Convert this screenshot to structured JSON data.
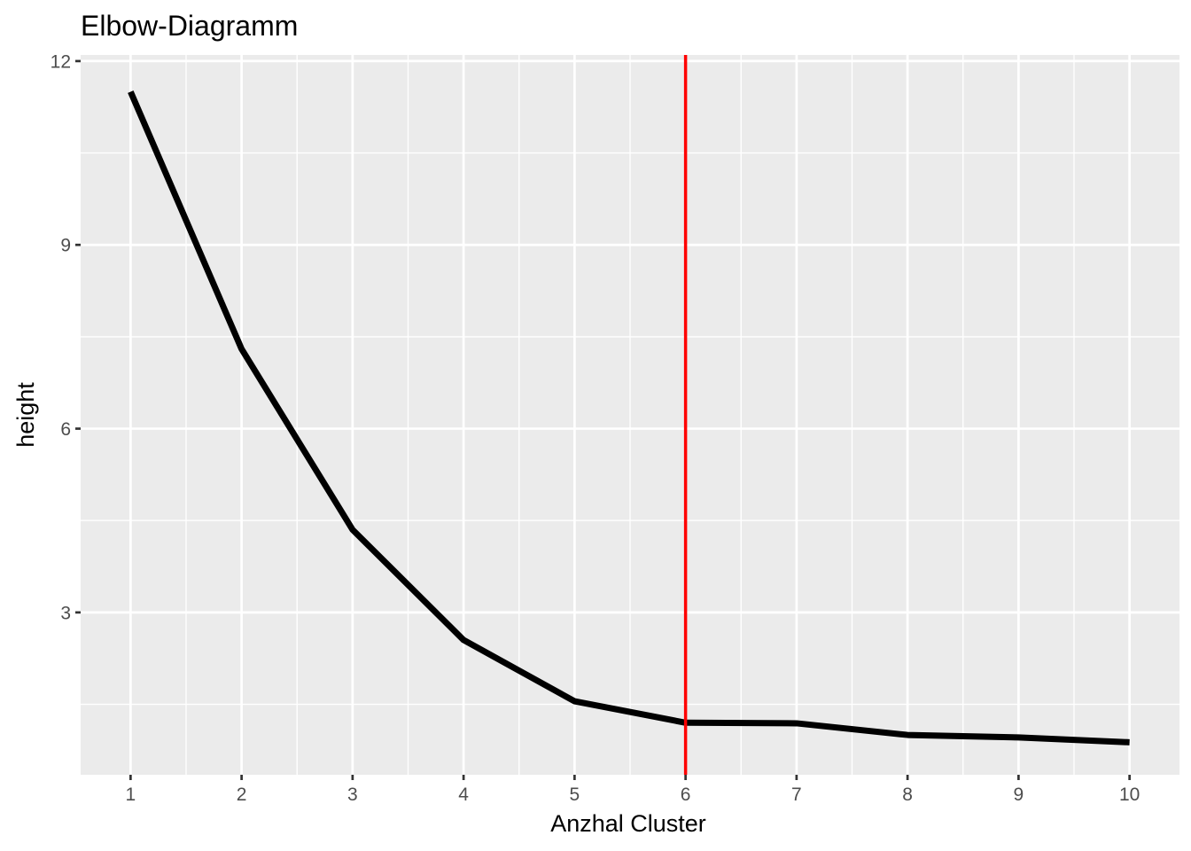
{
  "chart_data": {
    "type": "line",
    "title": "Elbow-Diagramm",
    "xlabel": "Anzhal Cluster",
    "ylabel": "height",
    "x": [
      1,
      2,
      3,
      4,
      5,
      6,
      7,
      8,
      9,
      10
    ],
    "series": [
      {
        "values": [
          11.5,
          7.3,
          4.35,
          2.55,
          1.55,
          1.2,
          1.19,
          1.0,
          0.96,
          0.88
        ],
        "color": "#000000"
      }
    ],
    "vline": {
      "x": 6,
      "color": "#ff0000"
    },
    "xlim": [
      0.55,
      10.45
    ],
    "ylim": [
      0.35,
      12.1
    ],
    "x_ticks": [
      1,
      2,
      3,
      4,
      5,
      6,
      7,
      8,
      9,
      10
    ],
    "y_ticks": [
      3,
      6,
      9,
      12
    ],
    "y_minor_ticks": [
      1.5,
      4.5,
      7.5,
      10.5
    ],
    "grid": true,
    "legend": "none",
    "background": "#ebebeb"
  }
}
